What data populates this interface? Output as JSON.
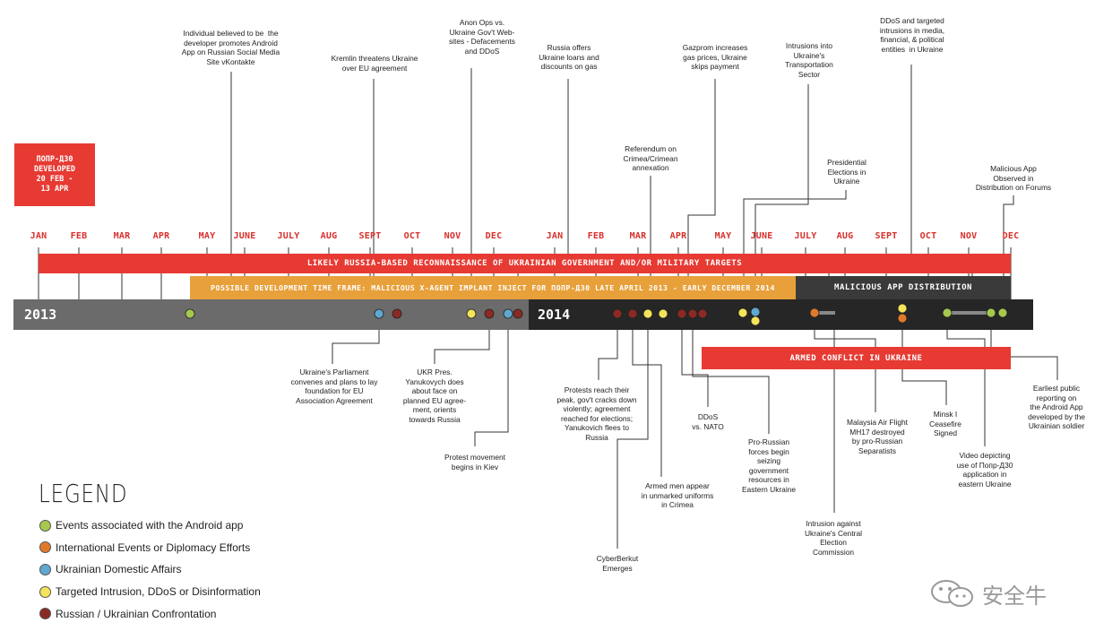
{
  "colors": {
    "android": "#a6c84e",
    "international": "#e07a2b",
    "domestic": "#5fa8cf",
    "intrusion": "#f4e45a",
    "confrontation": "#8b2a24",
    "red": "#e63a33",
    "orange": "#e8a03b",
    "dark": "#262626",
    "gray": "#6b6b6b"
  },
  "badge": "ПОПР-Д30\nDEVELOPED\n20 FEB -\n13 APR",
  "months": [
    "JAN",
    "FEB",
    "MAR",
    "APR",
    "MAY",
    "JUNE",
    "JULY",
    "AUG",
    "SEPT",
    "OCT",
    "NOV",
    "DEC",
    "JAN",
    "FEB",
    "MAR",
    "APR",
    "MAY",
    "JUNE",
    "JULY",
    "AUG",
    "SEPT",
    "OCT",
    "NOV",
    "DEC"
  ],
  "years": {
    "y2013": "2013",
    "y2014": "2014"
  },
  "bands": {
    "recon": "LIKELY RUSSIA-BASED RECONNAISSANCE OF UKRAINIAN GOVERNMENT AND/OR MILITARY TARGETS",
    "dev": "POSSIBLE DEVELOPMENT TIME FRAME: MALICIOUS X-AGENT IMPLANT INJECT FOR ПОПР-Д30 LATE APRIL 2013 - EARLY DECEMBER 2014",
    "dist": "MALICIOUS APP DISTRIBUTION",
    "armed": "ARMED CONFLICT IN UKRAINE"
  },
  "top_notes": {
    "vk": "Individual believed to be  the\ndeveloper promotes Android\nApp on Russian Social Media\nSite vKontakte",
    "kremlin": "Kremlin threatens Ukraine\nover EU agreement",
    "anon": "Anon Ops vs.\nUkraine Gov't Web-\nsites - Defacements\nand DDoS",
    "loans": "Russia offers\nUkraine loans and\ndiscounts on gas",
    "gazprom": "Gazprom increases\ngas prices, Ukraine\nskips payment",
    "transport": "Intrusions into\nUkraine's\nTransportation\nSector",
    "ddos_media": "DDoS and targeted\nintrusions in media,\nfinancial, & political\nentities  in Ukraine",
    "referendum": "Referendum on\nCrimea/Crimean\nannexation",
    "elections": "Presidential\nElections in\nUkraine",
    "forums": "Malicious App\nObserved in\nDistribution on Forums"
  },
  "bottom_notes": {
    "parliament": "Ukraine's Parliament\nconvenes and plans to lay\nfoundation for EU\nAssociation Agreement",
    "yanukovych": "UKR Pres.\nYanukovych does\nabout face on\nplanned EU agree-\nment, orients\ntowards Russia",
    "protest": "Protest movement\nbegins in Kiev",
    "peak": "Protests reach their\npeak, gov't cracks down\nviolently; agreement\nreached for elections;\nYanukovich flees to\nRussia",
    "armed_men": "Armed men appear\nin unmarked uniforms\nin Crimea",
    "cyberberkut": "CyberBerkut\nEmerges",
    "ddos_nato": "DDoS\nvs. NATO",
    "pro_russian": "Pro-Russian\nforces begin\nseizing\ngovernment\nresources in\nEastern Ukraine",
    "cec": "Intrusion against\nUkraine's Central\nElection\nCommission",
    "mh17": "Malaysia Air Flight\nMH17 destroyed\nby pro-Russian\nSeparatists",
    "minsk": "Minsk I\nCeasefire\nSigned",
    "video": "Video depicting\nuse of Попр-Д30\napplication in\neastern Ukraine",
    "earliest": "Earliest public\nreporting on\nthe Android App\ndeveloped by the\nUkrainian soldier"
  },
  "legend": {
    "title": "LEGEND",
    "items": [
      {
        "label": "Events associated with the Android app",
        "color": "#a6c84e"
      },
      {
        "label": "International Events or Diplomacy Efforts",
        "color": "#e07a2b"
      },
      {
        "label": "Ukrainian Domestic Affairs",
        "color": "#5fa8cf"
      },
      {
        "label": "Targeted Intrusion, DDoS or Disinformation",
        "color": "#f4e45a"
      },
      {
        "label": "Russian / Ukrainian Confrontation",
        "color": "#8b2a24"
      }
    ]
  },
  "watermark": "安全牛"
}
